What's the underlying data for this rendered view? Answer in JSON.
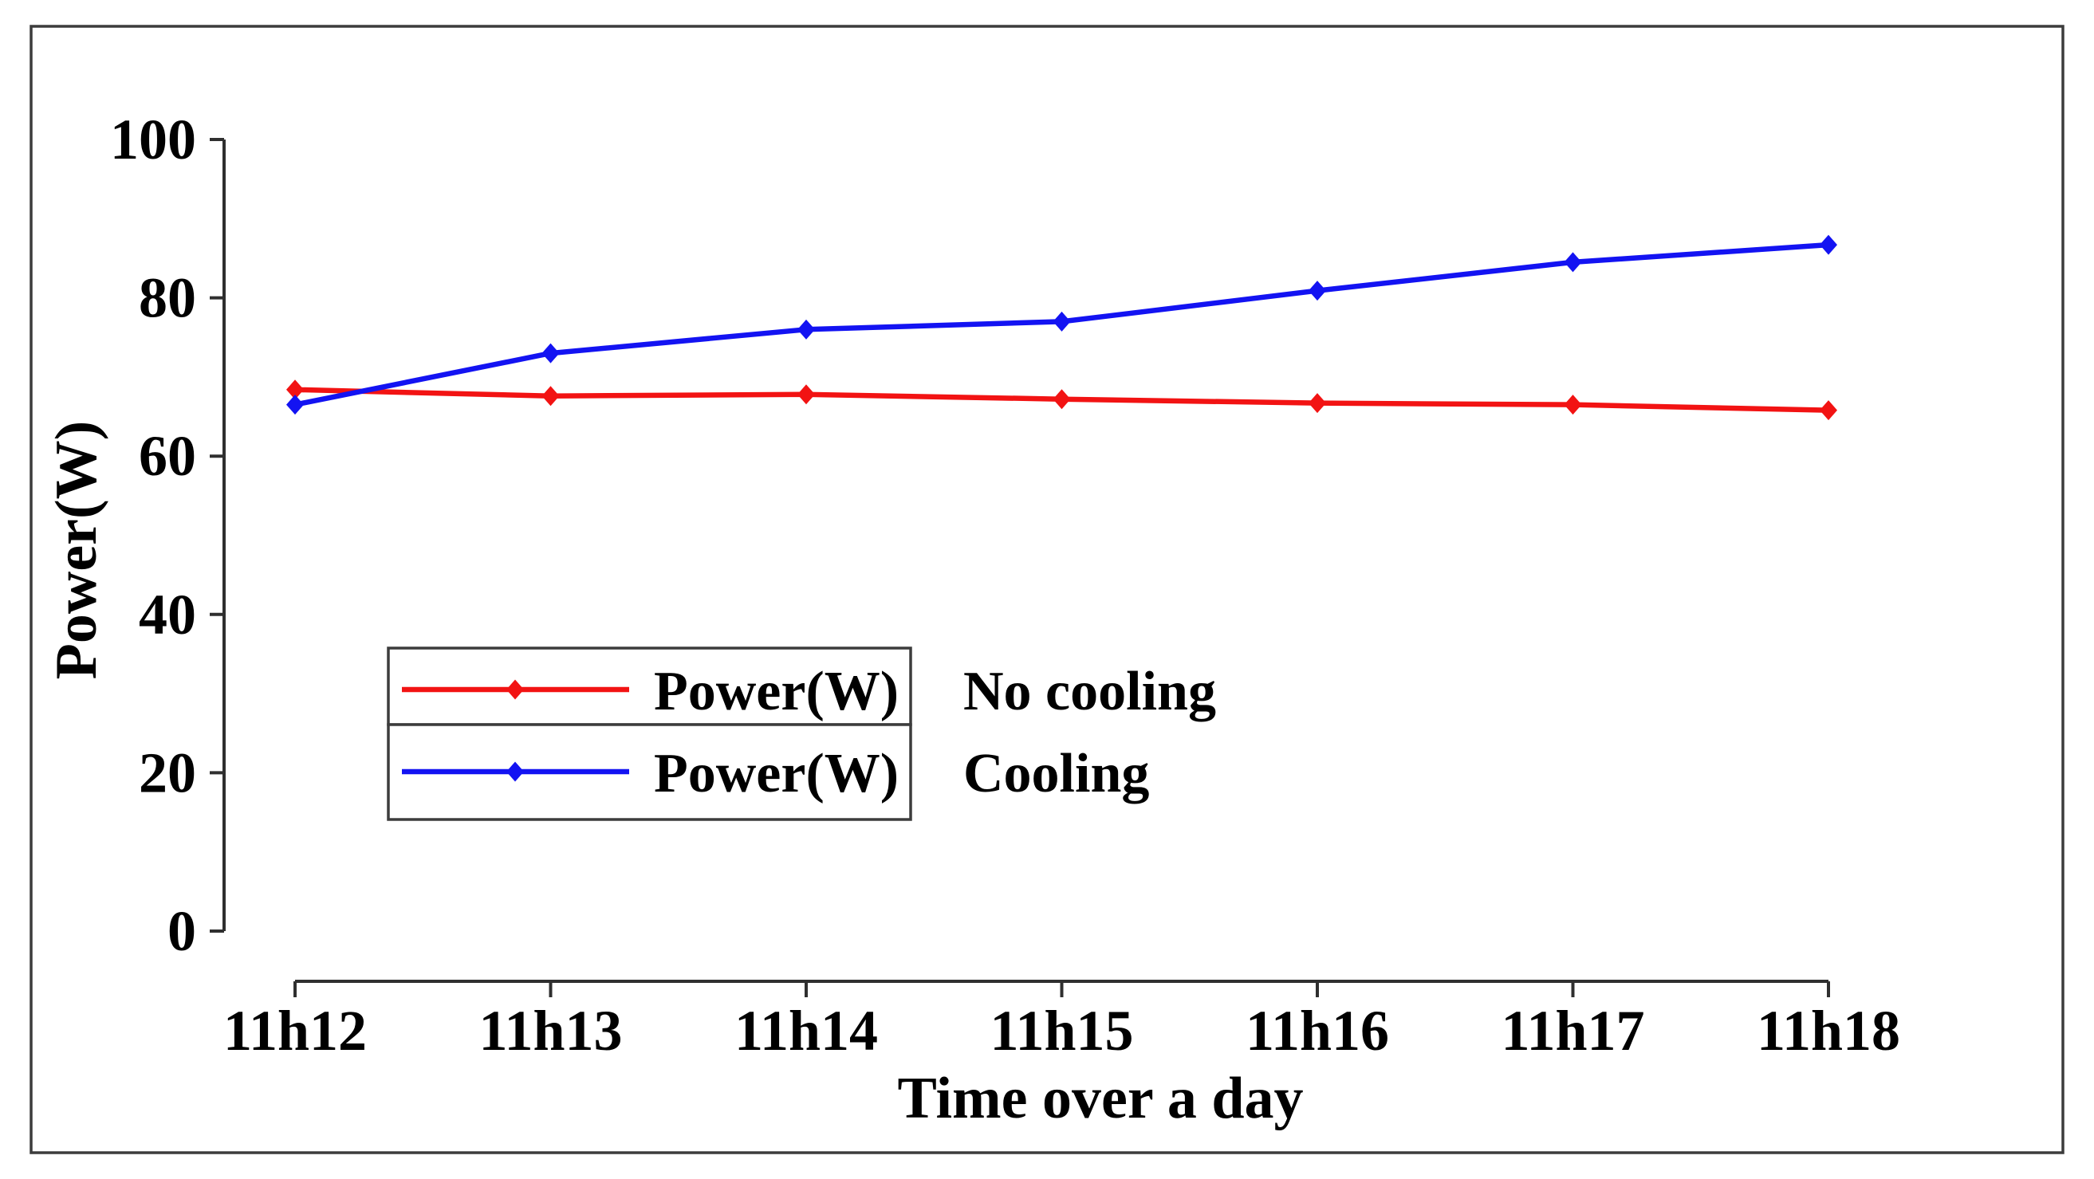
{
  "chart_data": {
    "type": "line",
    "title": "",
    "xlabel": "Time over a day",
    "ylabel": "Power(W)",
    "categories": [
      "11h12",
      "11h13",
      "11h14",
      "11h15",
      "11h16",
      "11h17",
      "11h18"
    ],
    "y_ticks": [
      0,
      20,
      40,
      60,
      80,
      100
    ],
    "ylim": [
      0,
      100
    ],
    "grid": false,
    "marker_shape": "diamond",
    "legend": {
      "position": "inside-center-left",
      "entries": [
        {
          "label": "Power(W)",
          "annotation": "No cooling",
          "series": "No cooling"
        },
        {
          "label": "Power(W)",
          "annotation": "Cooling",
          "series": "Cooling"
        }
      ]
    },
    "series": [
      {
        "name": "No cooling",
        "color": "#f21313",
        "values": [
          68.4,
          67.6,
          67.8,
          67.2,
          66.7,
          66.5,
          65.8
        ]
      },
      {
        "name": "Cooling",
        "color": "#1313f2",
        "values": [
          66.5,
          73.0,
          76.0,
          77.0,
          80.9,
          84.5,
          86.7
        ]
      }
    ]
  },
  "colors": {
    "background": "#ffffff",
    "axis": "#2f2f2f",
    "frame_border": "#3c3c3c",
    "legend_border": "#3c3c3c",
    "text": "#000000"
  }
}
